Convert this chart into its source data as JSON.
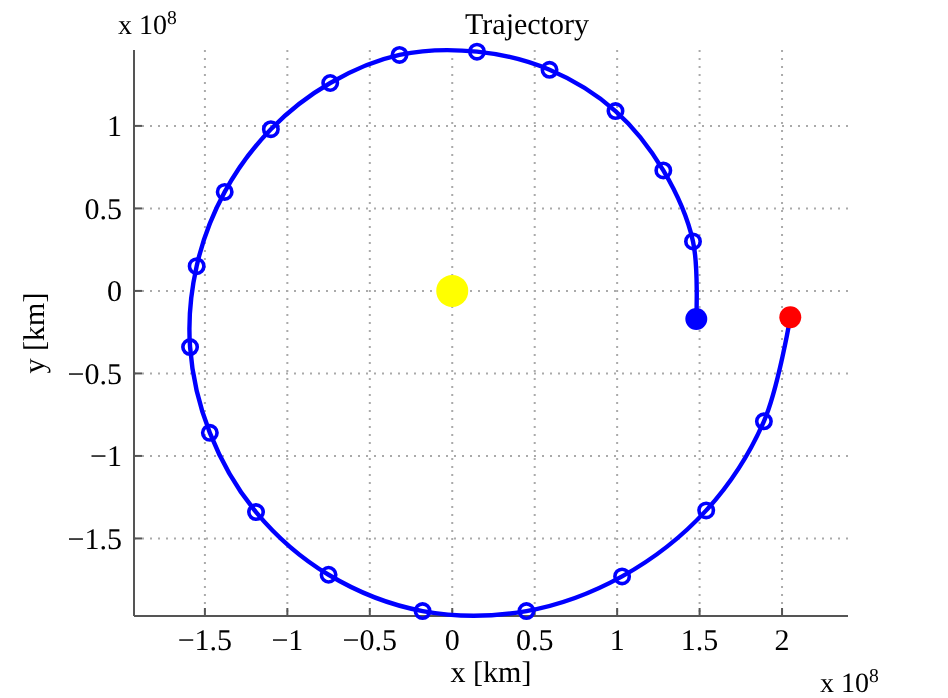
{
  "chart_data": {
    "type": "line",
    "title": "Trajectory",
    "xlabel": "x [km]",
    "ylabel": "y [km]",
    "annotations": [
      "x 10$^{8}$",
      "x 10$^{8}$"
    ],
    "xlim": [
      -1.93,
      2.4
    ],
    "ylim": [
      -1.97,
      1.46
    ],
    "xticks": [
      -1.5,
      -1,
      -0.5,
      0,
      0.5,
      1,
      1.5,
      2
    ],
    "yticks": [
      -1.5,
      -1,
      -0.5,
      0,
      0.5,
      1
    ],
    "grid": true,
    "line_style": "solid",
    "series": [
      {
        "marker": "circle",
        "color": "#0000ff",
        "x": [
          1.48,
          1.46,
          1.28,
          0.99,
          0.59,
          0.15,
          -0.32,
          -0.74,
          -1.1,
          -1.38,
          -1.55,
          -1.59,
          -1.47,
          -1.19,
          -0.75,
          -0.18,
          0.45,
          1.03,
          1.54,
          1.89,
          2.05
        ],
        "values": [
          -0.17,
          0.3,
          0.73,
          1.09,
          1.34,
          1.45,
          1.43,
          1.26,
          0.98,
          0.6,
          0.15,
          -0.34,
          -0.86,
          -1.34,
          -1.72,
          -1.94,
          -1.94,
          -1.73,
          -1.33,
          -0.79,
          -0.16
        ]
      },
      {
        "type": "bubble",
        "color": "#ffff00",
        "x": [
          0
        ],
        "values": [
          0
        ],
        "sizes": [
          1
        ]
      },
      {
        "type": "bubble",
        "color": "#0000ff",
        "x": [
          1.48
        ],
        "values": [
          -0.17
        ],
        "sizes": [
          0.47
        ]
      },
      {
        "type": "bubble",
        "color": "#ff0000",
        "x": [
          2.05
        ],
        "values": [
          -0.16
        ],
        "sizes": [
          0.47
        ]
      }
    ]
  }
}
